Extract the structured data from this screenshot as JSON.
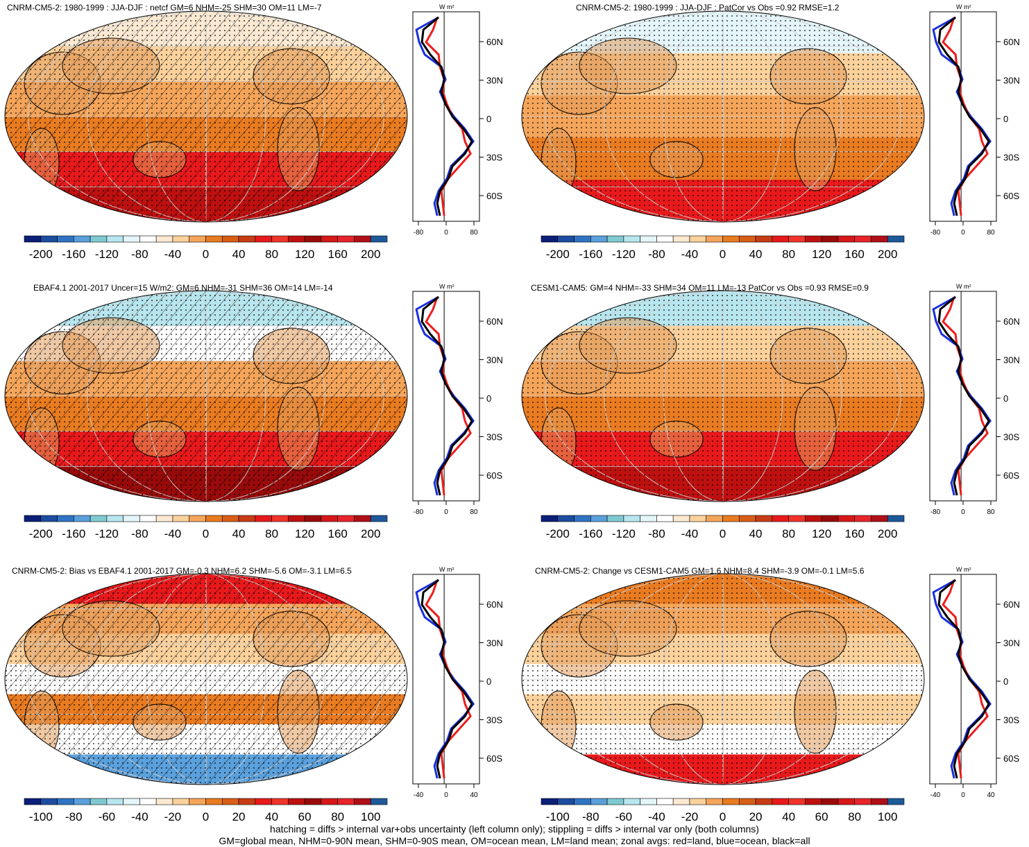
{
  "panels": [
    {
      "title": "CNRM-CM5-2: 1980-1999 : JJA-DJF : netcf GM=6 NHM=-25 SHM=30 OM=11 LM=-7",
      "colorbar_labels": [
        "-200",
        "-160",
        "-120",
        "-80",
        "-40",
        "0",
        "40",
        "80",
        "120",
        "160",
        "200"
      ],
      "zonal_ticks": [
        "-80",
        "0",
        "80"
      ],
      "hatching": true
    },
    {
      "title": "CNRM-CM5-2: 1980-1999 : JJA-DJF : PatCor vs Obs =0.92 RMSE=1.2",
      "colorbar_labels": [
        "-200",
        "-160",
        "-120",
        "-80",
        "-40",
        "0",
        "40",
        "80",
        "120",
        "160",
        "200"
      ],
      "zonal_ticks": [
        "-80",
        "0",
        "80"
      ],
      "hatching": false
    },
    {
      "title": "EBAF4.1 2001-2017 Uncer=15 W/m2: GM=6 NHM=-31 SHM=36 OM=14 LM=-14",
      "colorbar_labels": [
        "-200",
        "-160",
        "-120",
        "-80",
        "-40",
        "0",
        "40",
        "80",
        "120",
        "160",
        "200"
      ],
      "zonal_ticks": [
        "-80",
        "0",
        "80"
      ],
      "hatching": true
    },
    {
      "title": "CESM1-CAM5: GM=4 NHM=-33 SHM=34 OM=11 LM=-13 PatCor vs Obs =0.93 RMSE=0.9",
      "colorbar_labels": [
        "-200",
        "-160",
        "-120",
        "-80",
        "-40",
        "0",
        "40",
        "80",
        "120",
        "160",
        "200"
      ],
      "zonal_ticks": [
        "-80",
        "0",
        "80"
      ],
      "hatching": false
    },
    {
      "title": "CNRM-CM5-2: Bias vs EBAF4.1 2001-2017 GM=-0.3 NHM=6.2 SHM=-5.6 OM=-3.1 LM=6.5",
      "colorbar_labels": [
        "-100",
        "-80",
        "-60",
        "-40",
        "-20",
        "0",
        "20",
        "40",
        "60",
        "80",
        "100"
      ],
      "zonal_ticks": [
        "-40",
        "0",
        "40"
      ],
      "hatching": true
    },
    {
      "title": "CNRM-CM5-2: Change vs CESM1-CAM5 GM=1.6 NHM=8.4 SHM=-3.9 OM=-0.1 LM=5.6",
      "colorbar_labels": [
        "-100",
        "-80",
        "-60",
        "-40",
        "-20",
        "0",
        "20",
        "40",
        "60",
        "80",
        "100"
      ],
      "zonal_ticks": [
        "-40",
        "0",
        "40"
      ],
      "hatching": false
    }
  ],
  "zonal_units": "W m²",
  "lat_labels": [
    "60N",
    "30N",
    "0",
    "30S",
    "60S"
  ],
  "colorbar_colors": [
    "#0b1e78",
    "#1c4da0",
    "#2f74c4",
    "#5aa0dc",
    "#7fcad0",
    "#b7e6ef",
    "#e5f6fb",
    "#ffffff",
    "#fbe9d2",
    "#fbd19c",
    "#f5a55a",
    "#e97b20",
    "#d95e16",
    "#c83c14",
    "#e8191b",
    "#f0342a",
    "#bf1010",
    "#9a0a0a",
    "#d61818",
    "#e8242b",
    "#b00f18",
    "#1e5a9a"
  ],
  "line_colors": {
    "land": "#ee1c1c",
    "ocean": "#1a2fe0",
    "all": "#000000"
  },
  "footer": [
    "hatching = diffs > internal var+obs uncertainty (left column only); stippling = diffs > internal var only (both columns)",
    "GM=global mean, NHM=0-90N mean, SHM=0-90S mean, OM=ocean mean, LM=land mean; zonal avgs: red=land, blue=ocean, black=all"
  ]
}
